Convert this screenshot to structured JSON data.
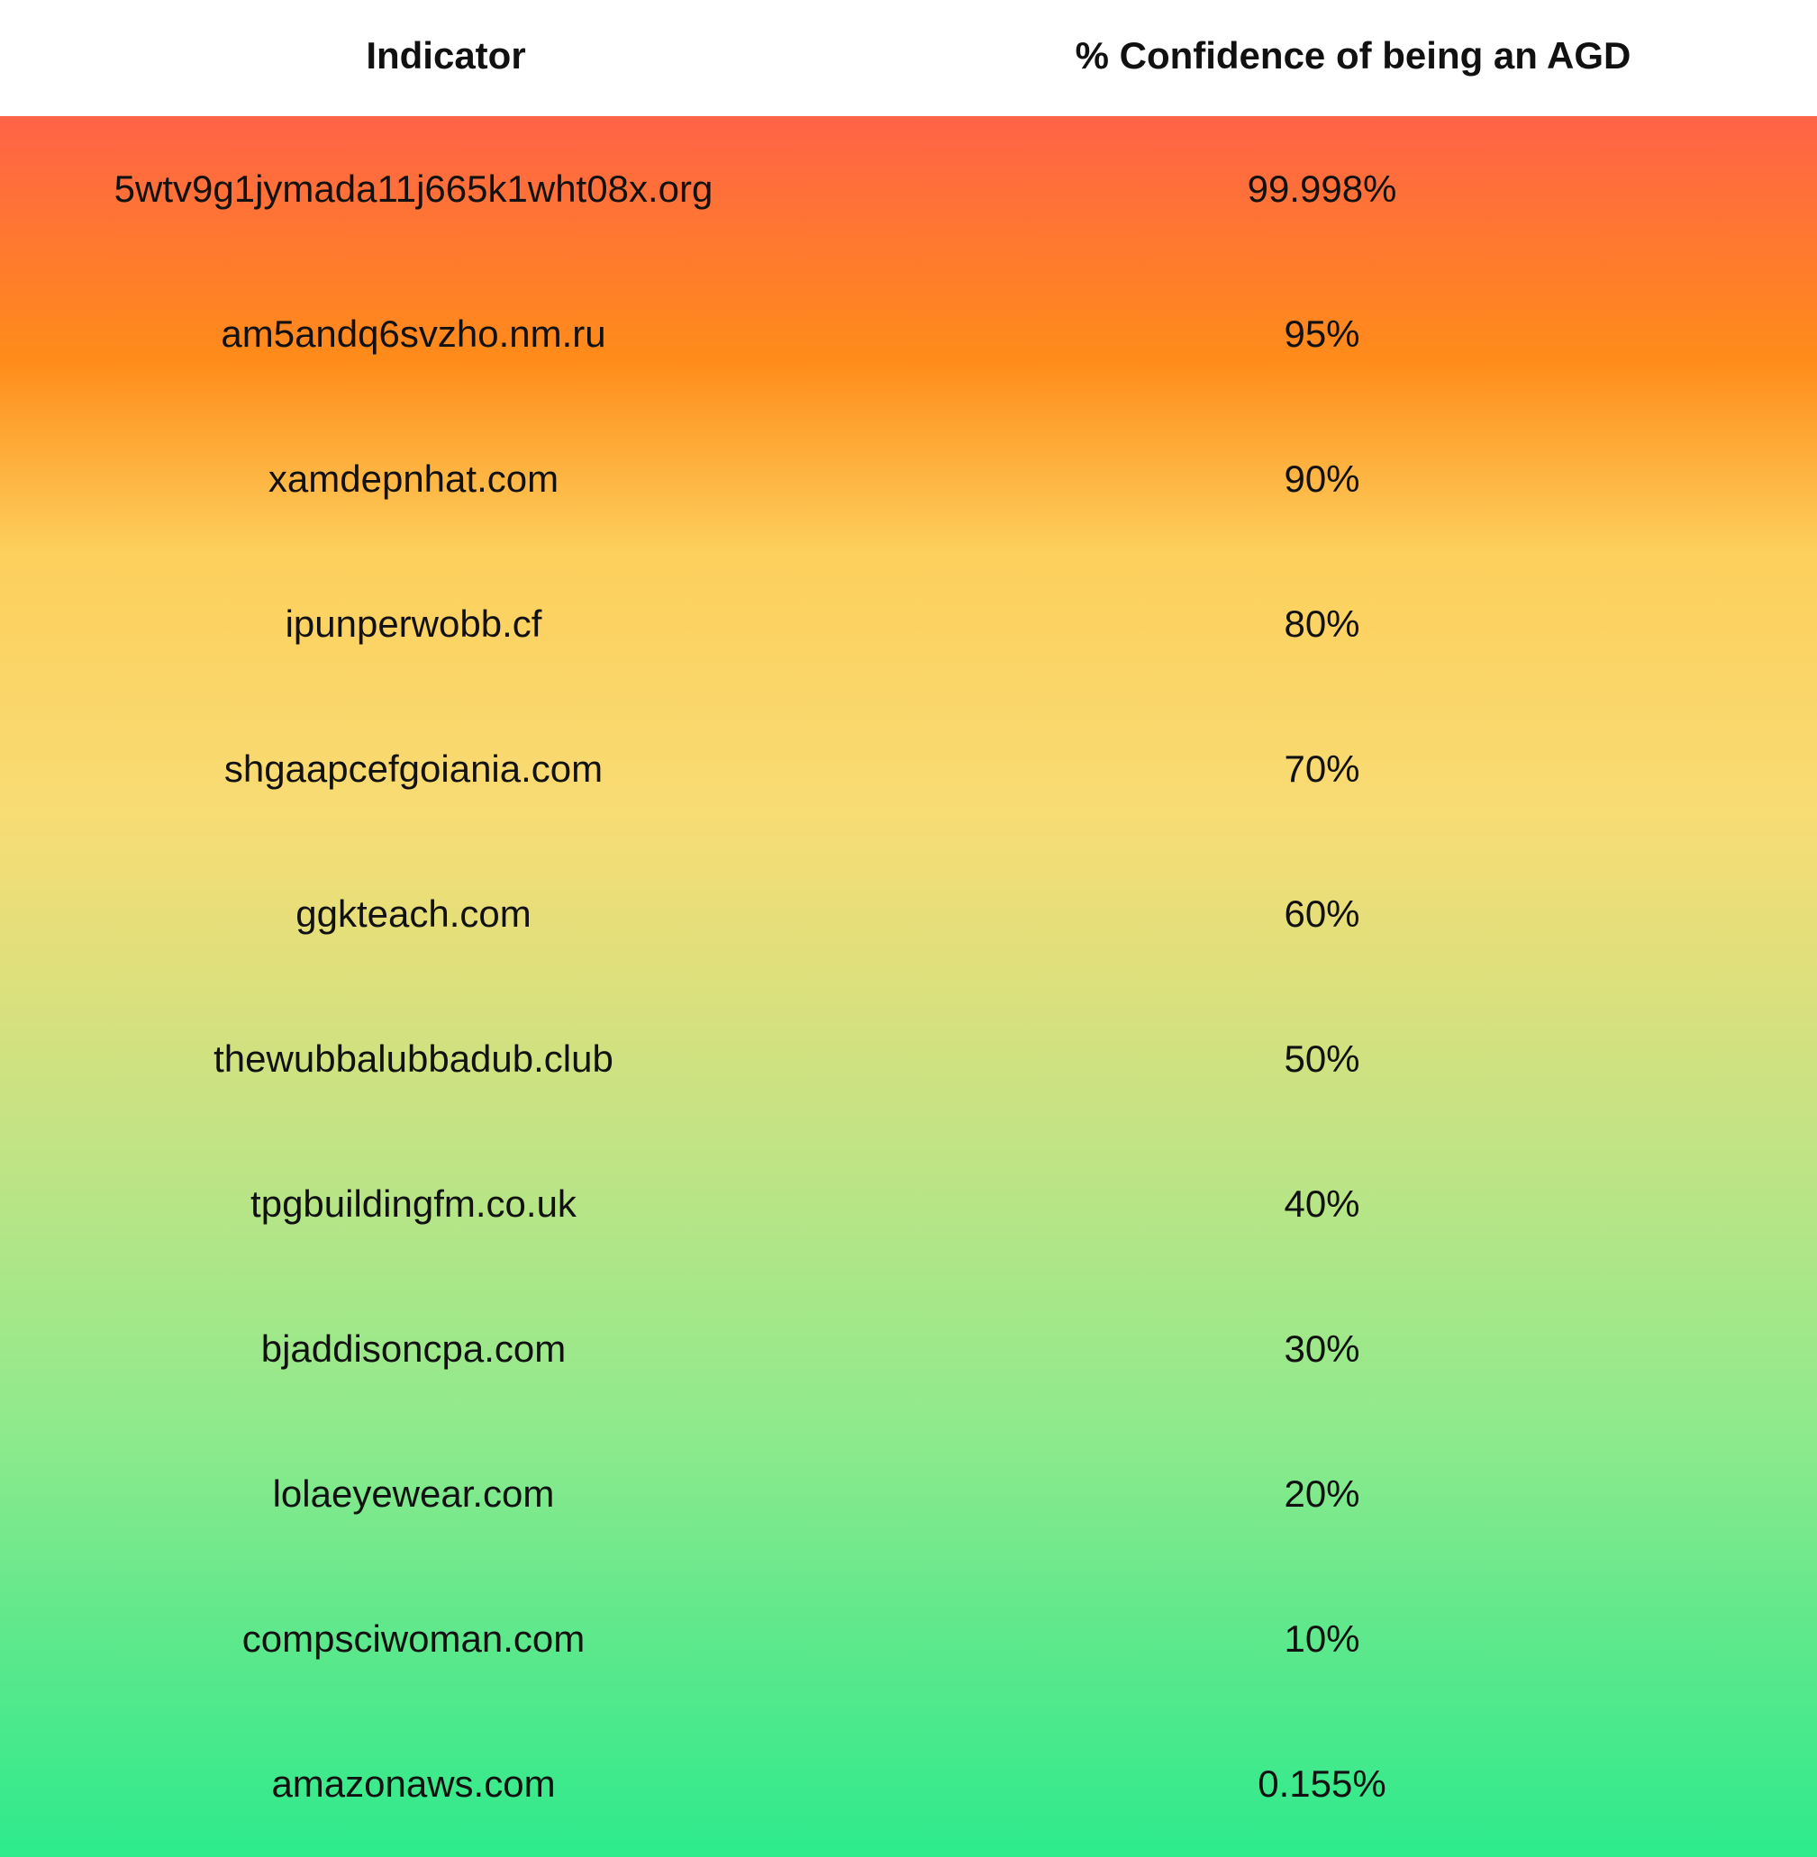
{
  "chart_data": {
    "type": "table",
    "columns": [
      "Indicator",
      "% Confidence of being an AGD"
    ],
    "rows": [
      {
        "indicator": "5wtv9g1jymada11j665k1wht08x.org",
        "confidence": "99.998%"
      },
      {
        "indicator": "am5andq6svzho.nm.ru",
        "confidence": "95%"
      },
      {
        "indicator": "xamdepnhat.com",
        "confidence": "90%"
      },
      {
        "indicator": "ipunperwobb.cf",
        "confidence": "80%"
      },
      {
        "indicator": "shgaapcefgoiania.com",
        "confidence": "70%"
      },
      {
        "indicator": "ggkteach.com",
        "confidence": "60%"
      },
      {
        "indicator": "thewubbalubbadub.club",
        "confidence": "50%"
      },
      {
        "indicator": "tpgbuildingfm.co.uk",
        "confidence": "40%"
      },
      {
        "indicator": "bjaddisoncpa.com",
        "confidence": "30%"
      },
      {
        "indicator": "lolaeyewear.com",
        "confidence": "20%"
      },
      {
        "indicator": "compsciwoman.com",
        "confidence": "10%"
      },
      {
        "indicator": "amazonaws.com",
        "confidence": "0.155%"
      }
    ]
  },
  "colors": {
    "gradient": [
      "#ff6347",
      "#ff8c1a",
      "#fdcf5c",
      "#f8dc74",
      "#c5e384",
      "#90ea8c",
      "#5ce88c",
      "#2deb8c"
    ],
    "header_background": "#ffffff",
    "text": "#111111"
  }
}
